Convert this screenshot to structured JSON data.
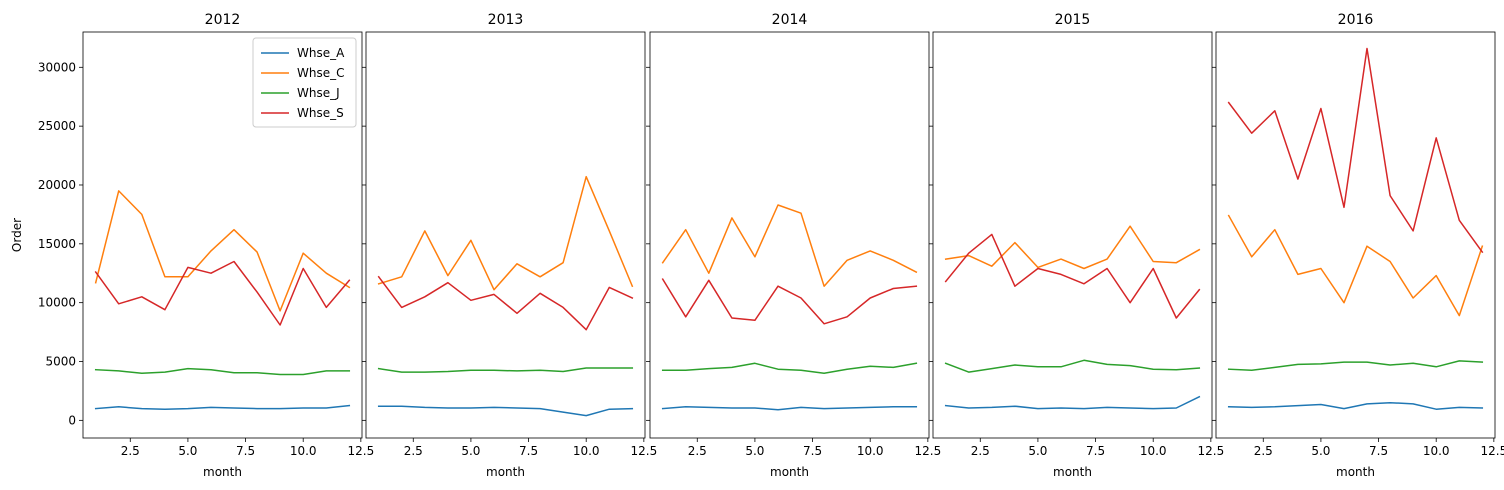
{
  "chart_data": {
    "type": "line",
    "ylabel": "Order",
    "ylim": [
      -1500,
      33000
    ],
    "xlim": [
      0.45,
      12.55
    ],
    "xticks": [
      2.5,
      5.0,
      7.5,
      10.0,
      12.5
    ],
    "xtick_labels": [
      "2.5",
      "5.0",
      "7.5",
      "10.0",
      "12.5"
    ],
    "yticks": [
      0,
      5000,
      10000,
      15000,
      20000,
      25000,
      30000
    ],
    "ytick_labels": [
      "0",
      "5000",
      "10000",
      "15000",
      "20000",
      "25000",
      "30000"
    ],
    "legend": {
      "placement": "top-right",
      "panel": 0
    },
    "series_info": [
      {
        "name": "Whse_A",
        "color": "#1f77b4"
      },
      {
        "name": "Whse_C",
        "color": "#ff7f0e"
      },
      {
        "name": "Whse_J",
        "color": "#2ca02c"
      },
      {
        "name": "Whse_S",
        "color": "#d62728"
      }
    ],
    "panels": [
      {
        "title": "2012",
        "xlabel": "month",
        "x": [
          1,
          2,
          3,
          4,
          5,
          6,
          7,
          8,
          9,
          10,
          11,
          12
        ],
        "series": [
          {
            "values": [
              1000,
              1150,
              1000,
              950,
              1000,
              1100,
              1050,
              1000,
              1000,
              1050,
              1050,
              1250
            ]
          },
          {
            "values": [
              11700,
              19500,
              17500,
              12200,
              12200,
              14400,
              16200,
              14300,
              9300,
              14200,
              12500,
              11300
            ]
          },
          {
            "values": [
              4300,
              4200,
              4000,
              4100,
              4400,
              4300,
              4050,
              4050,
              3900,
              3900,
              4200,
              4200
            ]
          },
          {
            "values": [
              12600,
              9900,
              10500,
              9400,
              13000,
              12500,
              13500,
              10900,
              8100,
              12900,
              9600,
              11900
            ]
          }
        ]
      },
      {
        "title": "2013",
        "xlabel": "month",
        "x": [
          1,
          2,
          3,
          4,
          5,
          6,
          7,
          8,
          9,
          10,
          11,
          12
        ],
        "series": [
          {
            "values": [
              1200,
              1200,
              1100,
              1050,
              1050,
              1100,
              1050,
              1000,
              700,
              400,
              950,
              1000
            ]
          },
          {
            "values": [
              11600,
              12200,
              16100,
              12300,
              15300,
              11100,
              13300,
              12200,
              13400,
              20700,
              16100,
              11400
            ]
          },
          {
            "values": [
              4400,
              4100,
              4100,
              4150,
              4250,
              4250,
              4200,
              4250,
              4150,
              4450,
              4450,
              4450
            ]
          },
          {
            "values": [
              12200,
              9600,
              10500,
              11700,
              10200,
              10700,
              9100,
              10800,
              9600,
              7700,
              11300,
              10400
            ]
          }
        ]
      },
      {
        "title": "2014",
        "xlabel": "month",
        "x": [
          1,
          2,
          3,
          4,
          5,
          6,
          7,
          8,
          9,
          10,
          11,
          12
        ],
        "series": [
          {
            "values": [
              1000,
              1150,
              1100,
              1050,
              1050,
              900,
              1100,
              1000,
              1050,
              1100,
              1150,
              1150
            ]
          },
          {
            "values": [
              13400,
              16200,
              12500,
              17200,
              13900,
              18300,
              17600,
              11400,
              13600,
              14400,
              13600,
              12600
            ]
          },
          {
            "values": [
              4250,
              4250,
              4400,
              4500,
              4850,
              4350,
              4250,
              4000,
              4350,
              4600,
              4500,
              4850
            ]
          },
          {
            "values": [
              12000,
              8800,
              11900,
              8700,
              8500,
              11400,
              10400,
              8200,
              8800,
              10400,
              11200,
              11400
            ]
          }
        ]
      },
      {
        "title": "2015",
        "xlabel": "month",
        "x": [
          1,
          2,
          3,
          4,
          5,
          6,
          7,
          8,
          9,
          10,
          11,
          12
        ],
        "series": [
          {
            "values": [
              1250,
              1050,
              1100,
              1200,
              1000,
              1050,
              1000,
              1100,
              1050,
              1000,
              1050,
              2000
            ]
          },
          {
            "values": [
              13700,
              14000,
              13100,
              15100,
              13000,
              13700,
              12900,
              13700,
              16500,
              13500,
              13400,
              14500
            ]
          },
          {
            "values": [
              4850,
              4100,
              4400,
              4700,
              4550,
              4550,
              5100,
              4750,
              4650,
              4350,
              4300,
              4450
            ]
          },
          {
            "values": [
              11800,
              14200,
              15800,
              11400,
              12900,
              12400,
              11600,
              12900,
              10000,
              12900,
              8700,
              11100
            ]
          }
        ]
      },
      {
        "title": "2016",
        "xlabel": "month",
        "x": [
          1,
          2,
          3,
          4,
          5,
          6,
          7,
          8,
          9,
          10,
          11,
          12
        ],
        "series": [
          {
            "values": [
              1150,
              1100,
              1150,
              1250,
              1350,
              1000,
              1400,
              1500,
              1400,
              950,
              1100,
              1050
            ]
          },
          {
            "values": [
              17400,
              13900,
              16200,
              12400,
              12900,
              10000,
              14800,
              13500,
              10400,
              12300,
              8900,
              14800
            ]
          },
          {
            "values": [
              4350,
              4250,
              4500,
              4750,
              4800,
              4950,
              4950,
              4700,
              4850,
              4550,
              5050,
              4950
            ]
          },
          {
            "values": [
              27000,
              24400,
              26300,
              20500,
              26500,
              18100,
              31600,
              19100,
              16100,
              24000,
              17000,
              14300
            ]
          }
        ]
      }
    ]
  }
}
